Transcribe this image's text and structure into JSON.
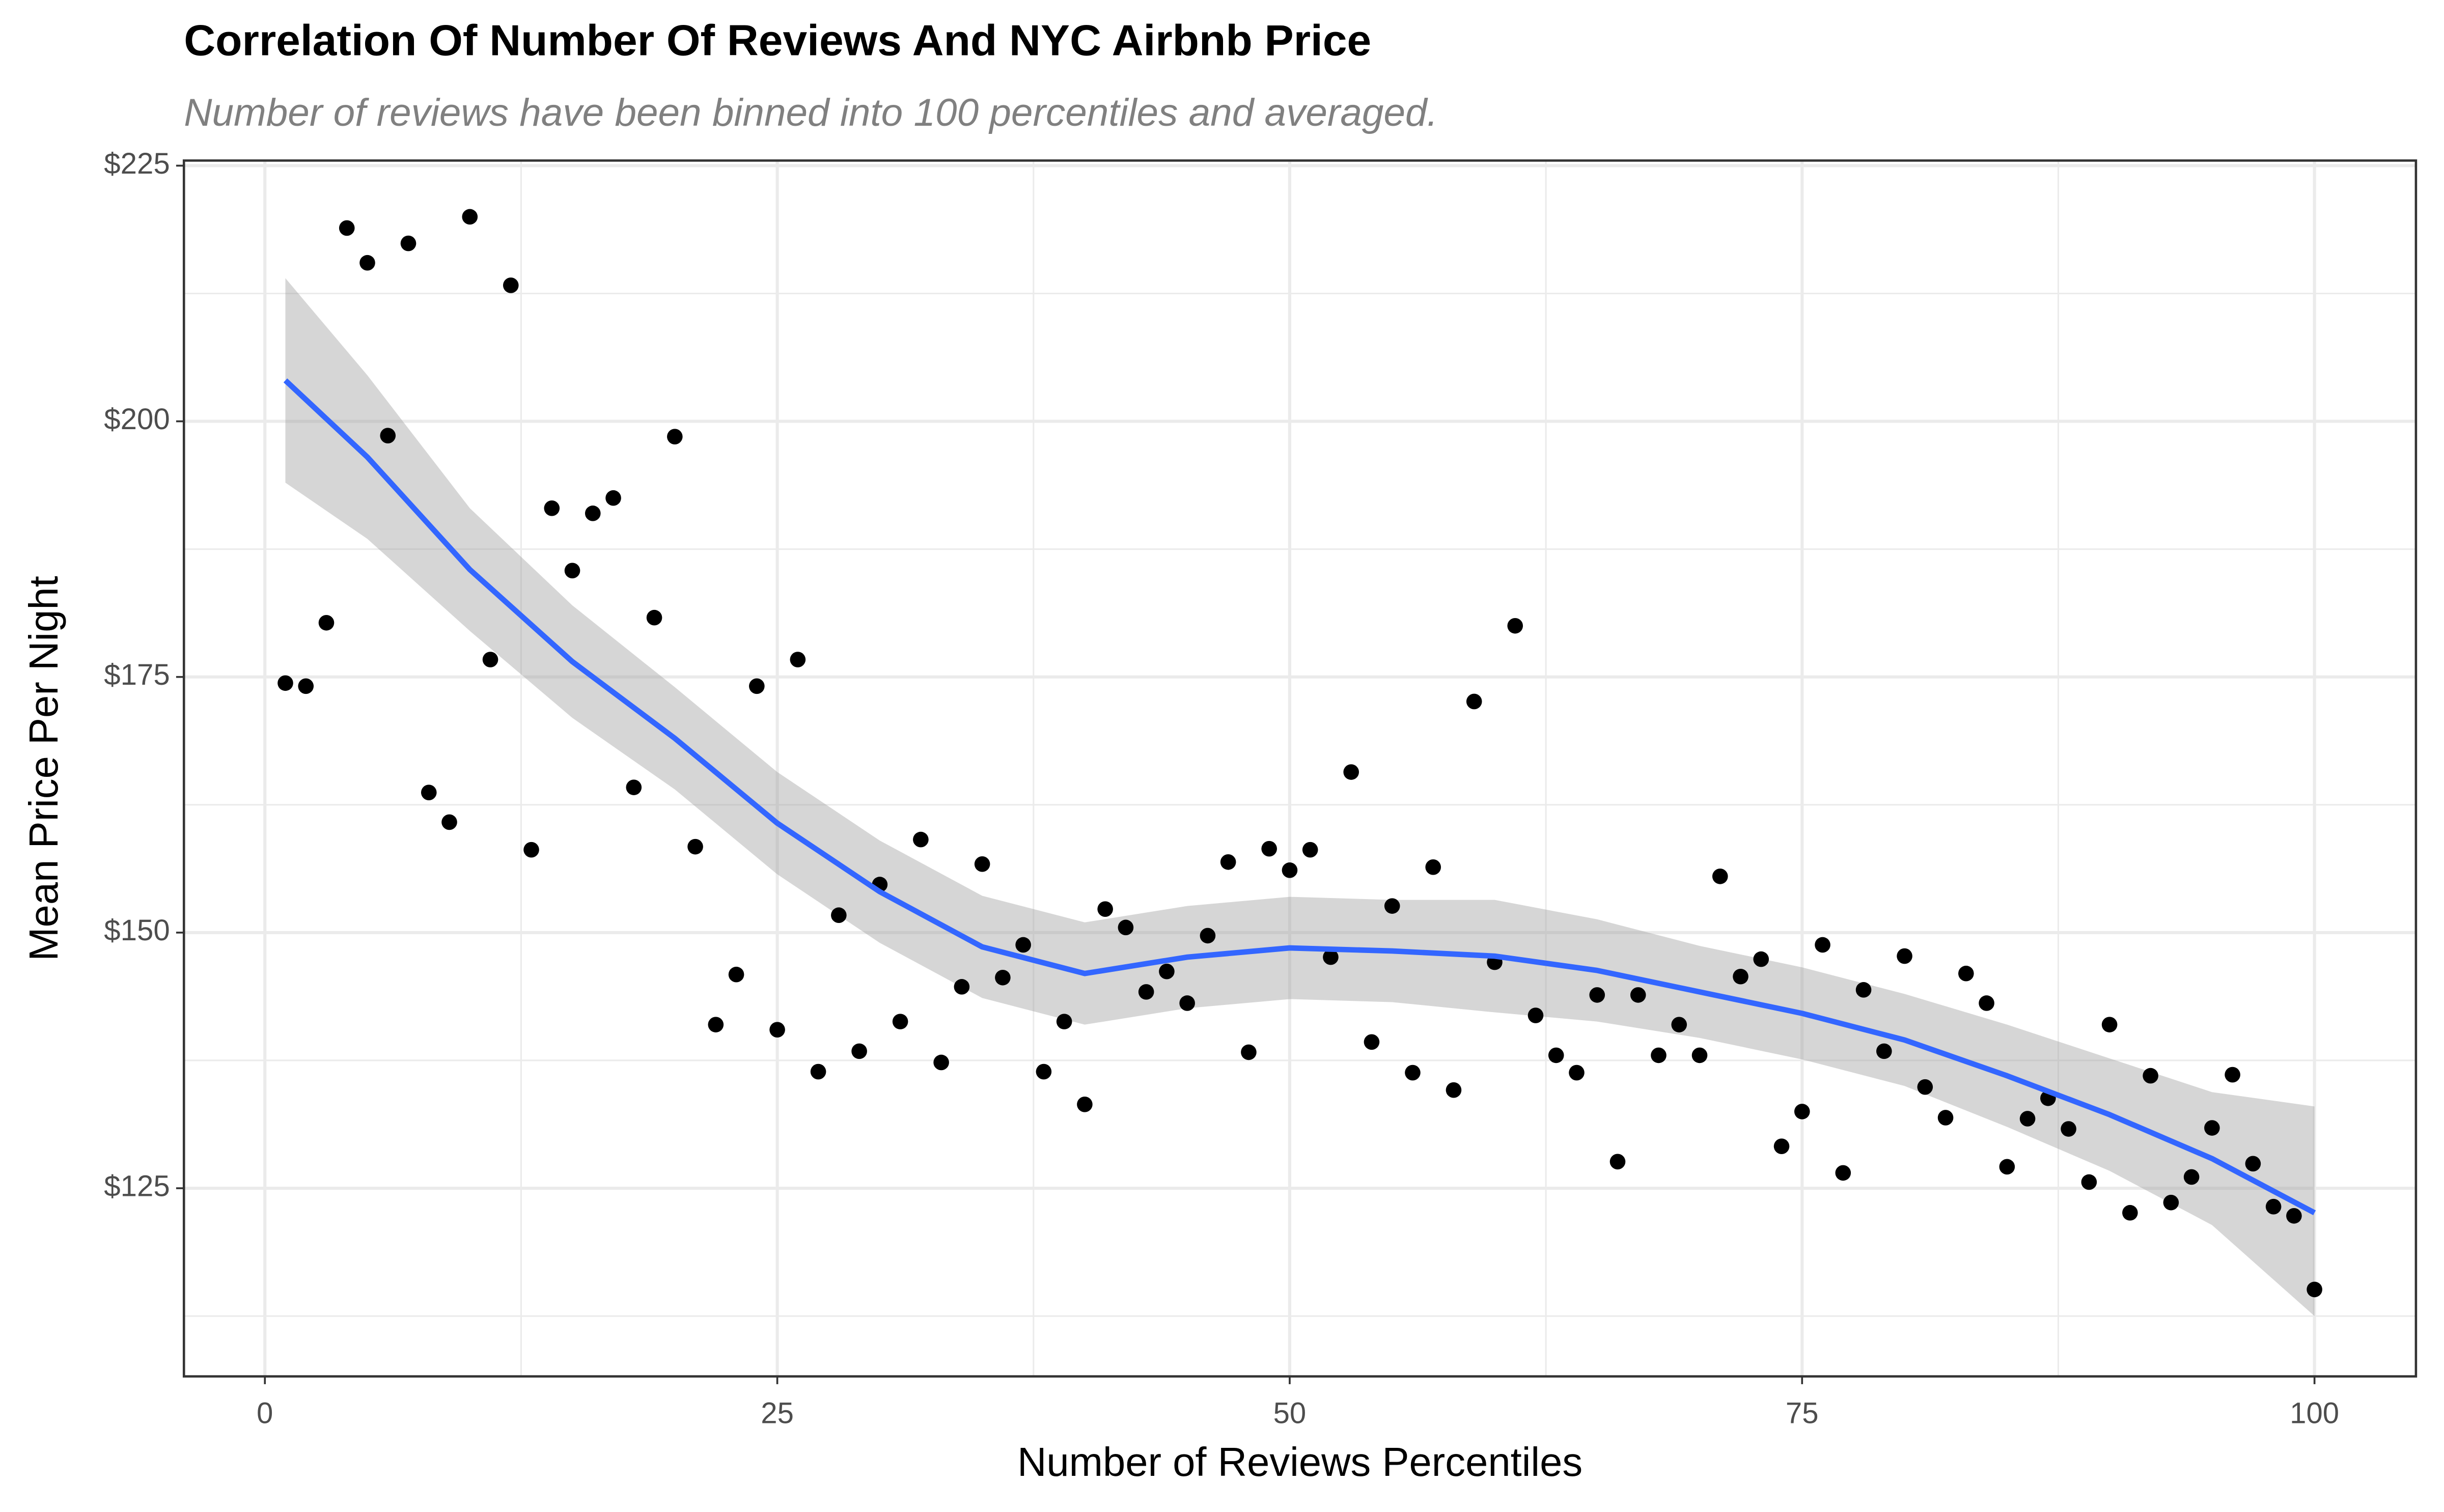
{
  "chart_data": {
    "type": "scatter",
    "title": "Correlation Of Number Of Reviews And NYC Airbnb Price",
    "subtitle": "Number of reviews have been binned into 100 percentiles and averaged.",
    "x_label": "Number of Reviews Percentiles",
    "y_label": "Mean Price Per Night",
    "xlim": [
      -3.95,
      104.95
    ],
    "ylim": [
      106.6,
      225.5
    ],
    "xticks": [
      0,
      25,
      50,
      75,
      100
    ],
    "yticks": [
      {
        "value": 125,
        "label": "$125"
      },
      {
        "value": 150,
        "label": "$150"
      },
      {
        "value": 175,
        "label": "$175"
      },
      {
        "value": 200,
        "label": "$200"
      },
      {
        "value": 225,
        "label": "$225"
      }
    ],
    "x_minor_ticks": [
      12.5,
      37.5,
      62.5,
      87.5
    ],
    "y_minor_ticks": [
      112.5,
      137.5,
      162.5,
      187.5,
      212.5
    ],
    "grid": true,
    "point_color": "#000000",
    "x": [
      1,
      2,
      3,
      4,
      5,
      6,
      7,
      8,
      9,
      10,
      11,
      12,
      13,
      14,
      15,
      16,
      17,
      18,
      19,
      20,
      21,
      22,
      23,
      24,
      25,
      26,
      27,
      28,
      29,
      30,
      31,
      32,
      33,
      34,
      35,
      36,
      37,
      38,
      39,
      40,
      41,
      42,
      43,
      44,
      45,
      46,
      47,
      48,
      49,
      50,
      51,
      52,
      53,
      54,
      55,
      56,
      57,
      58,
      59,
      60,
      61,
      62,
      63,
      64,
      65,
      66,
      67,
      68,
      69,
      70,
      71,
      72,
      73,
      74,
      75,
      76,
      77,
      78,
      79,
      80,
      81,
      82,
      83,
      84,
      85,
      86,
      87,
      88,
      89,
      90,
      91,
      92,
      93,
      94,
      95,
      96,
      97,
      98,
      99,
      100
    ],
    "values": [
      174.4,
      174.1,
      180.3,
      218.9,
      215.5,
      198.6,
      217.4,
      163.7,
      160.8,
      220.0,
      176.7,
      213.3,
      158.1,
      191.5,
      185.4,
      191.0,
      192.5,
      164.2,
      180.8,
      198.5,
      158.4,
      141.0,
      145.9,
      174.1,
      140.5,
      176.7,
      136.4,
      151.7,
      138.4,
      154.7,
      141.3,
      159.1,
      137.3,
      144.7,
      156.7,
      145.6,
      148.8,
      136.4,
      141.3,
      133.2,
      152.3,
      150.5,
      144.2,
      146.2,
      143.1,
      149.7,
      156.9,
      138.3,
      158.2,
      156.1,
      158.1,
      147.6,
      165.7,
      139.3,
      152.6,
      136.3,
      156.4,
      134.6,
      172.6,
      147.1,
      180.0,
      141.9,
      138.0,
      136.3,
      143.9,
      127.6,
      143.9,
      138.0,
      141.0,
      138.0,
      155.5,
      145.7,
      147.4,
      129.1,
      132.5,
      148.8,
      126.5,
      144.4,
      138.4,
      147.7,
      134.9,
      131.9,
      146.0,
      143.1,
      127.1,
      131.8,
      133.8,
      130.8,
      125.6,
      141.0,
      122.6,
      136.0,
      123.6,
      126.1,
      130.9,
      136.1,
      127.4,
      123.2,
      122.3,
      115.1
    ],
    "smooth": {
      "color": "#3366FF",
      "band_color": "#999999",
      "x": [
        1,
        5,
        10,
        15,
        20,
        25,
        30,
        35,
        40,
        45,
        50,
        55,
        60,
        65,
        70,
        75,
        80,
        85,
        90,
        95,
        100
      ],
      "values": [
        204.0,
        196.5,
        185.5,
        176.5,
        169.0,
        160.7,
        154.0,
        148.6,
        146.0,
        147.6,
        148.5,
        148.2,
        147.7,
        146.3,
        144.2,
        142.1,
        139.5,
        136.0,
        132.2,
        127.9,
        122.6
      ],
      "lower": [
        194.0,
        188.5,
        179.5,
        171.0,
        164.0,
        155.7,
        149.0,
        143.6,
        141.0,
        142.6,
        143.5,
        143.2,
        142.2,
        141.3,
        139.7,
        137.6,
        135.0,
        131.0,
        126.7,
        121.4,
        112.5
      ],
      "upper": [
        214.0,
        204.5,
        191.5,
        182.0,
        174.0,
        165.7,
        159.0,
        153.6,
        151.0,
        152.6,
        153.5,
        153.2,
        153.2,
        151.3,
        148.7,
        146.6,
        144.0,
        141.0,
        137.7,
        134.4,
        133.0
      ]
    }
  }
}
